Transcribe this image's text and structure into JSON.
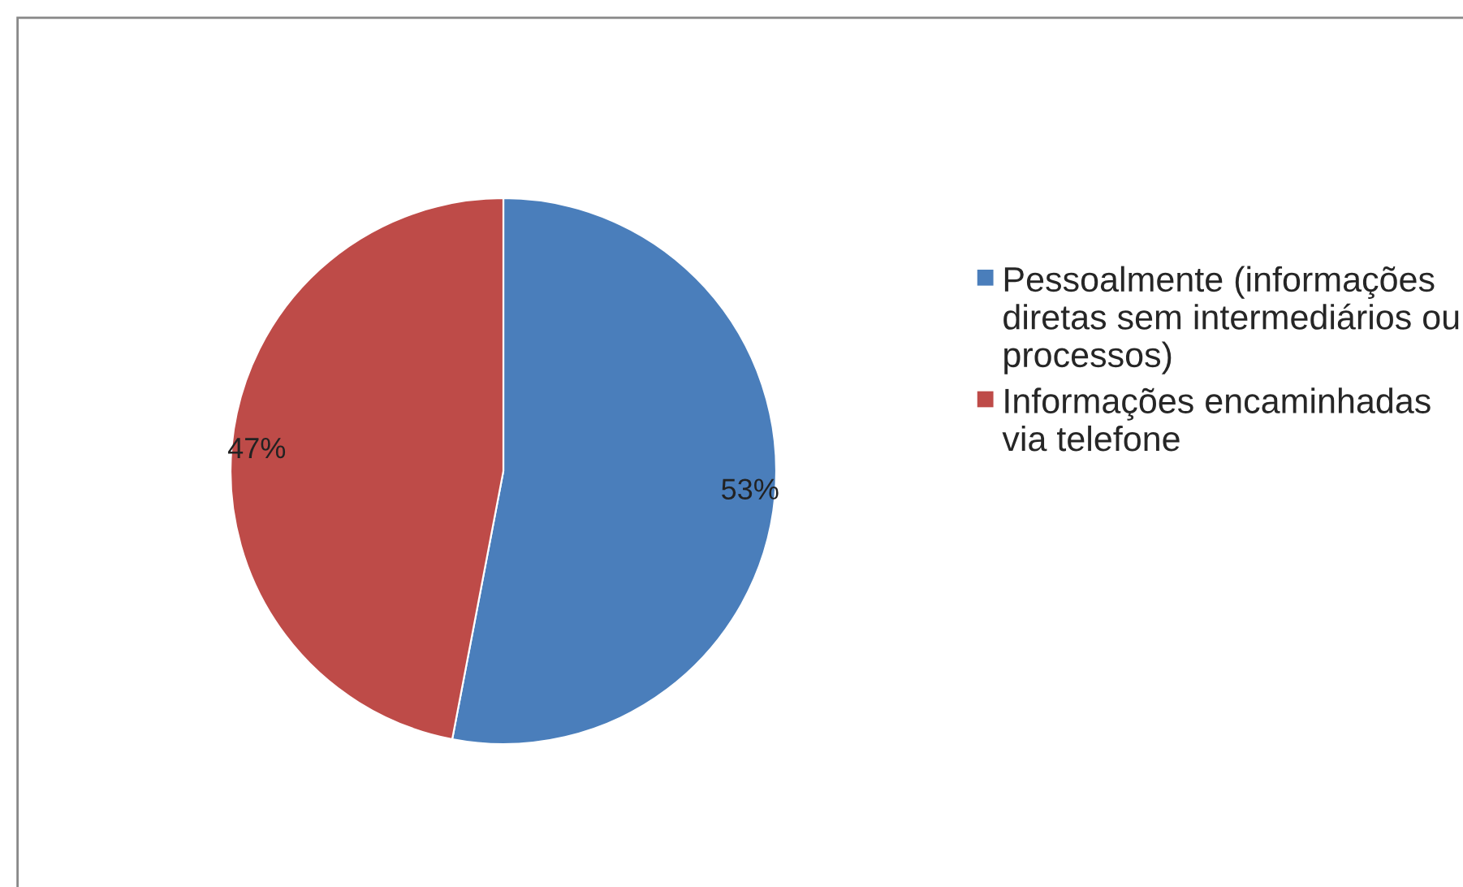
{
  "chart_data": {
    "type": "pie",
    "categories": [
      "Pessoalmente (informações diretas sem intermediários ou processos)",
      "Informações encaminhadas via telefone"
    ],
    "values": [
      53,
      47
    ],
    "colors": [
      "#4a7ebb",
      "#be4b48"
    ],
    "value_labels": [
      "53%",
      "47%"
    ],
    "legend": "right"
  }
}
